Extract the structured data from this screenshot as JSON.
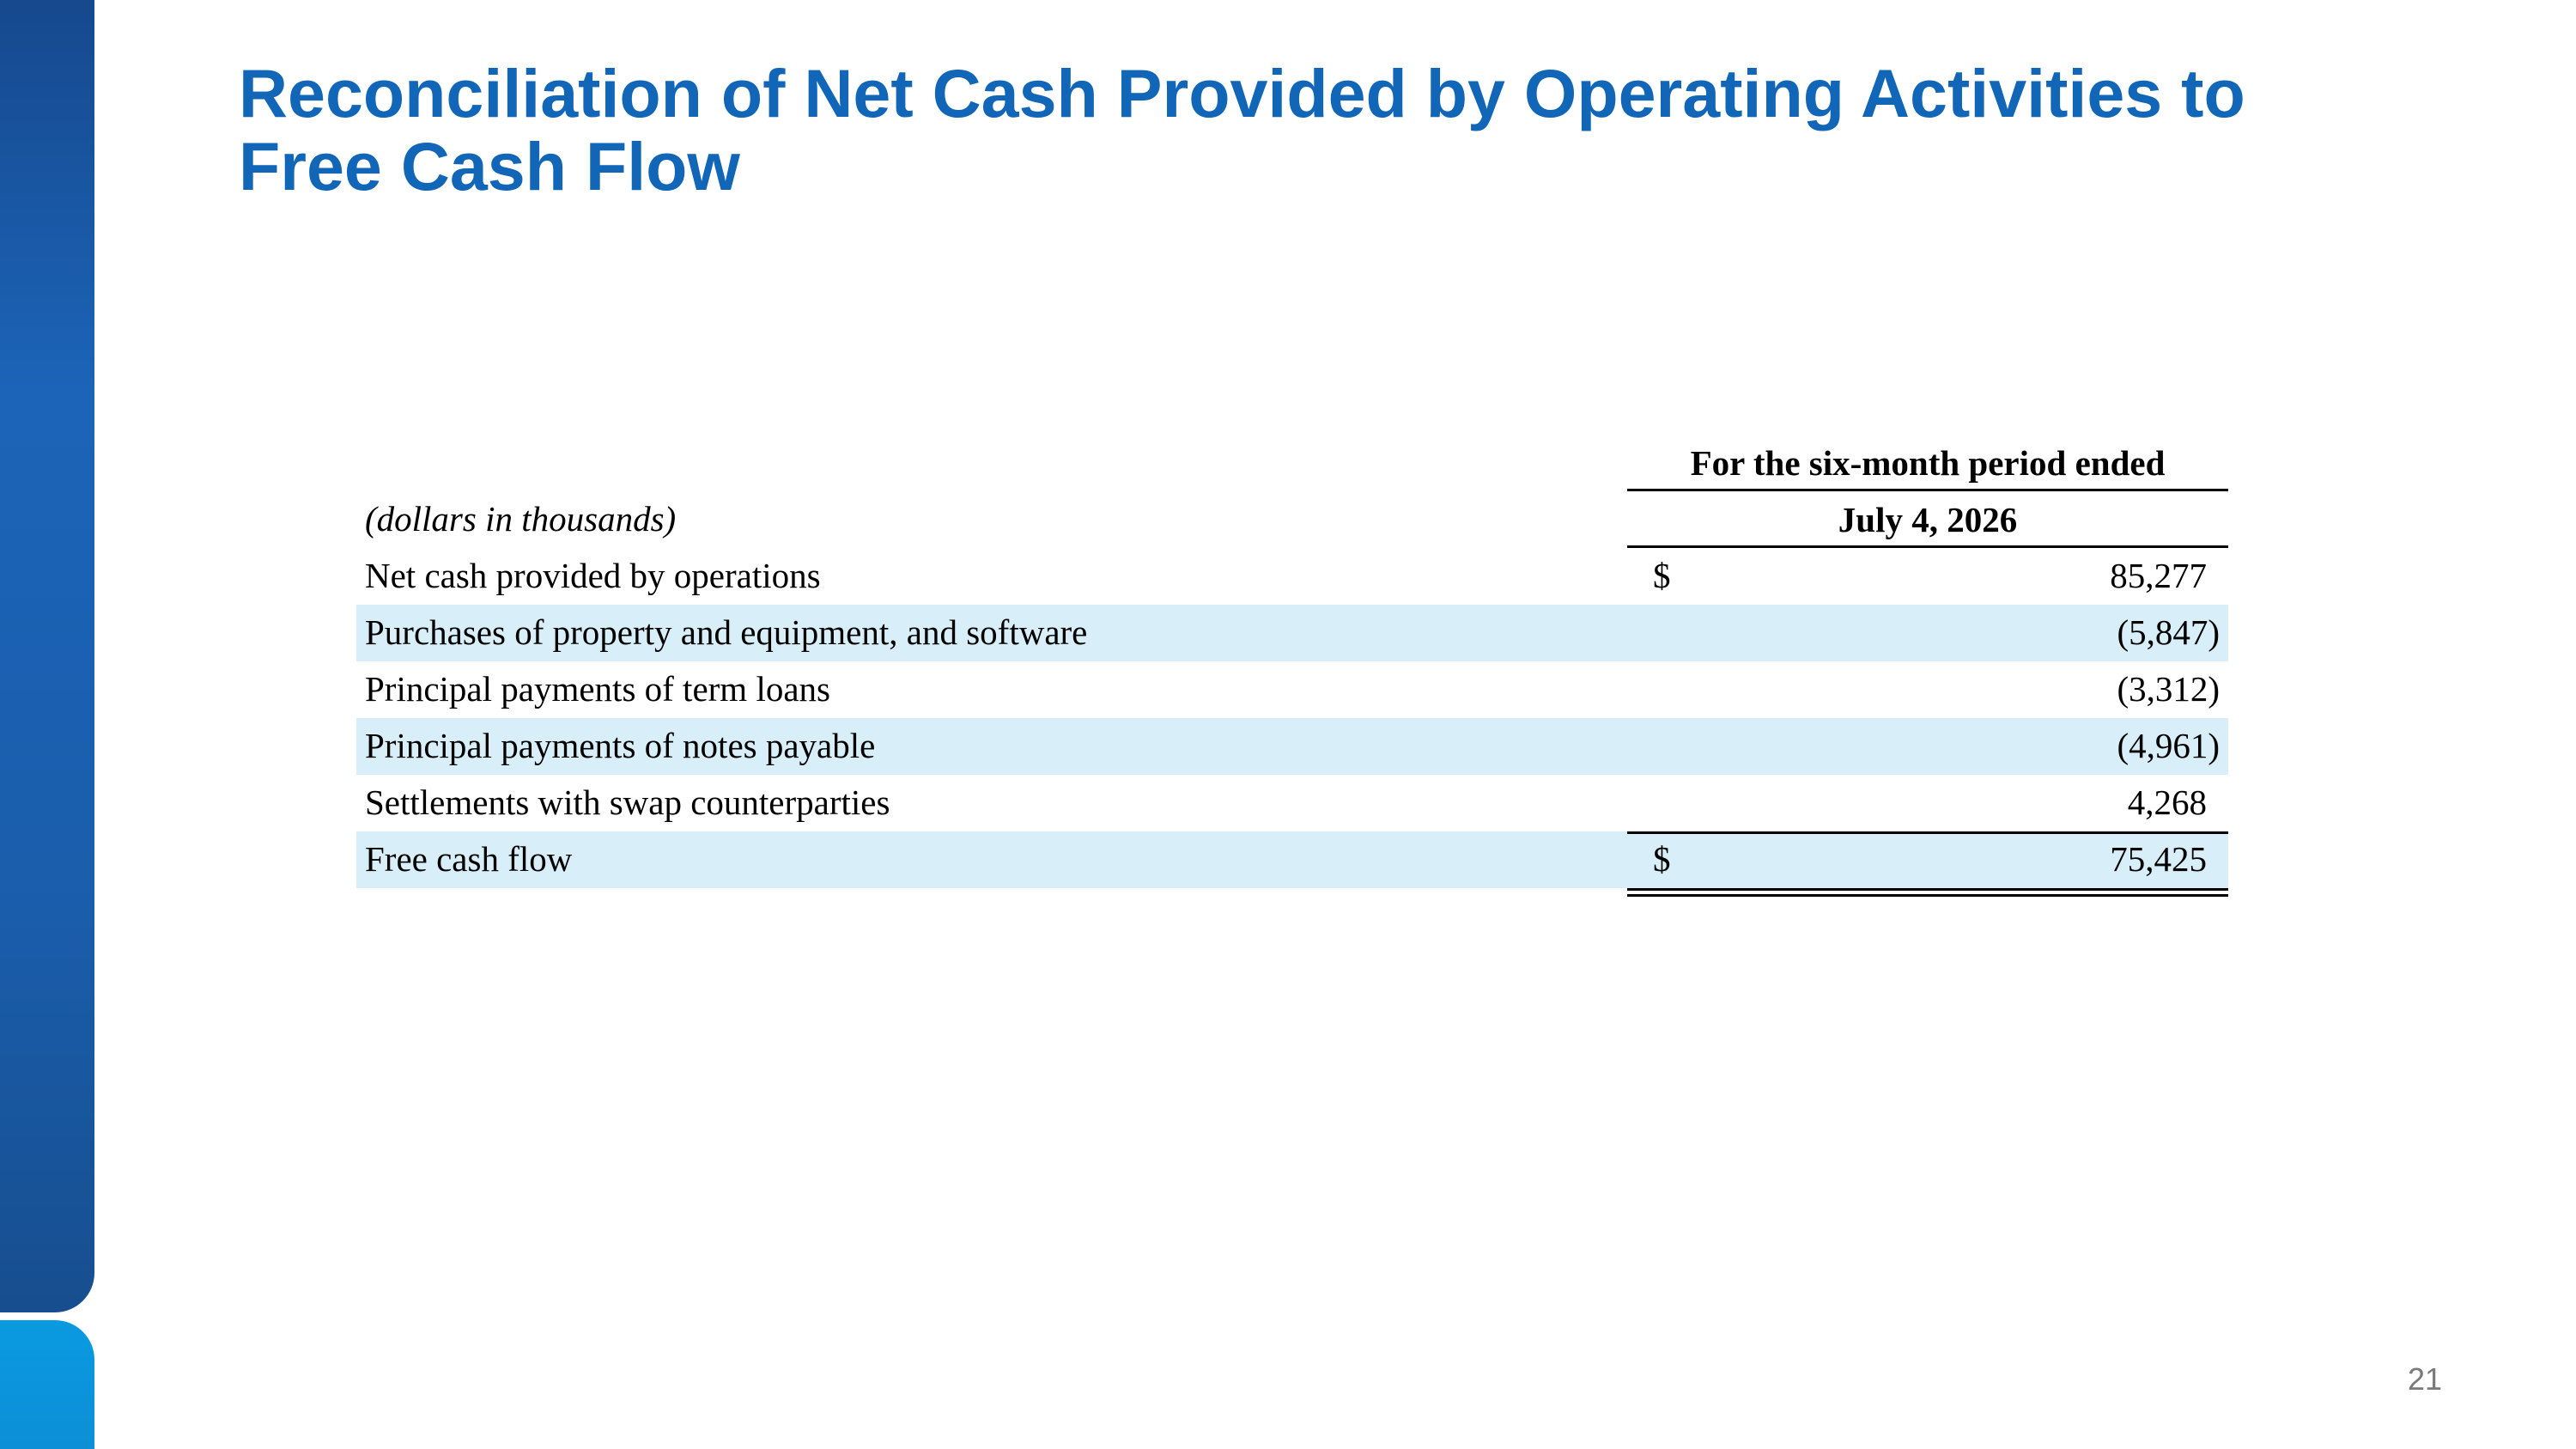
{
  "slide": {
    "title_line1": "Reconciliation of Net Cash Provided by Operating Activities to",
    "title_line2": "Free Cash Flow",
    "page_number": "21",
    "accent_color": "#1166b8",
    "band_color": "#d8eef9"
  },
  "table": {
    "unit_note": "(dollars in thousands)",
    "column_header_line1": "For the six-month period ended",
    "column_header_line2": "July 4, 2026",
    "rows": [
      {
        "label": "Net cash provided by operations",
        "currency": "$",
        "value": "85,277"
      },
      {
        "label": "Purchases of property and equipment, and software",
        "currency": "",
        "value": "(5,847)"
      },
      {
        "label": "Principal payments of term loans",
        "currency": "",
        "value": "(3,312)"
      },
      {
        "label": "Principal payments of notes payable",
        "currency": "",
        "value": "(4,961)"
      },
      {
        "label": "Settlements with swap counterparties",
        "currency": "",
        "value": "4,268"
      },
      {
        "label": "Free cash flow",
        "currency": "$",
        "value": "75,425"
      }
    ]
  }
}
